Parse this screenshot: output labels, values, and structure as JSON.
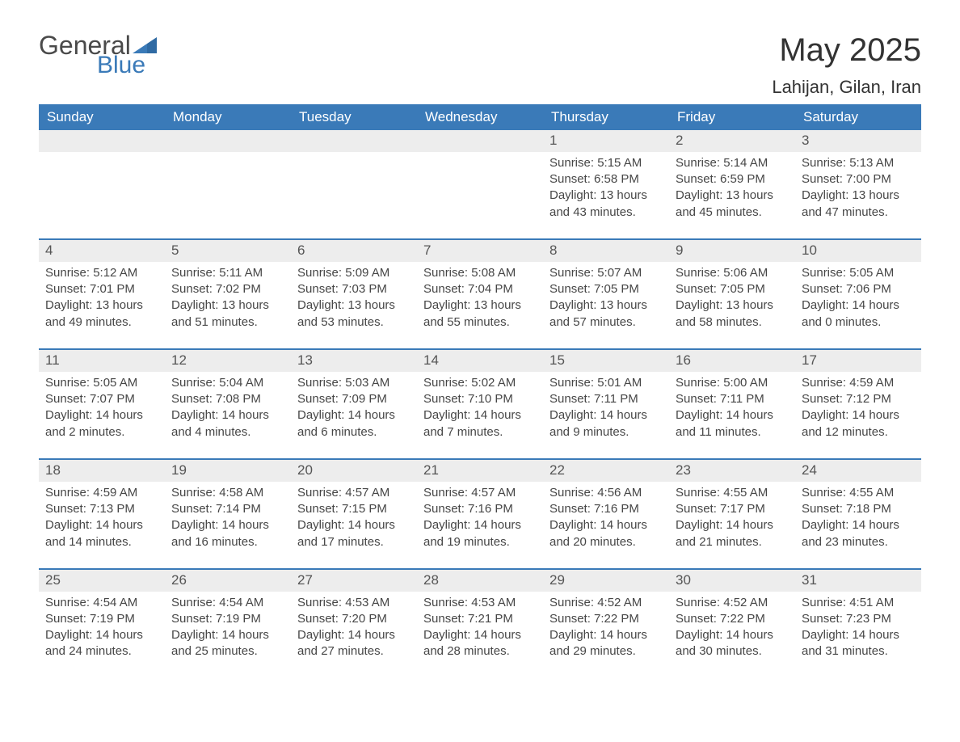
{
  "logo": {
    "text1": "General",
    "text2": "Blue",
    "flag_color": "#3a7ab8"
  },
  "title": "May 2025",
  "location": "Lahijan, Gilan, Iran",
  "colors": {
    "header_bg": "#3a7ab8",
    "header_text": "#ffffff",
    "daynum_bg": "#ededed",
    "row_border": "#3a7ab8",
    "body_text": "#464646",
    "page_bg": "#ffffff"
  },
  "typography": {
    "title_fontsize": 40,
    "location_fontsize": 22,
    "header_fontsize": 17,
    "cell_fontsize": 15
  },
  "weekdays": [
    "Sunday",
    "Monday",
    "Tuesday",
    "Wednesday",
    "Thursday",
    "Friday",
    "Saturday"
  ],
  "weeks": [
    [
      null,
      null,
      null,
      null,
      {
        "day": "1",
        "sunrise": "Sunrise: 5:15 AM",
        "sunset": "Sunset: 6:58 PM",
        "dl1": "Daylight: 13 hours",
        "dl2": "and 43 minutes."
      },
      {
        "day": "2",
        "sunrise": "Sunrise: 5:14 AM",
        "sunset": "Sunset: 6:59 PM",
        "dl1": "Daylight: 13 hours",
        "dl2": "and 45 minutes."
      },
      {
        "day": "3",
        "sunrise": "Sunrise: 5:13 AM",
        "sunset": "Sunset: 7:00 PM",
        "dl1": "Daylight: 13 hours",
        "dl2": "and 47 minutes."
      }
    ],
    [
      {
        "day": "4",
        "sunrise": "Sunrise: 5:12 AM",
        "sunset": "Sunset: 7:01 PM",
        "dl1": "Daylight: 13 hours",
        "dl2": "and 49 minutes."
      },
      {
        "day": "5",
        "sunrise": "Sunrise: 5:11 AM",
        "sunset": "Sunset: 7:02 PM",
        "dl1": "Daylight: 13 hours",
        "dl2": "and 51 minutes."
      },
      {
        "day": "6",
        "sunrise": "Sunrise: 5:09 AM",
        "sunset": "Sunset: 7:03 PM",
        "dl1": "Daylight: 13 hours",
        "dl2": "and 53 minutes."
      },
      {
        "day": "7",
        "sunrise": "Sunrise: 5:08 AM",
        "sunset": "Sunset: 7:04 PM",
        "dl1": "Daylight: 13 hours",
        "dl2": "and 55 minutes."
      },
      {
        "day": "8",
        "sunrise": "Sunrise: 5:07 AM",
        "sunset": "Sunset: 7:05 PM",
        "dl1": "Daylight: 13 hours",
        "dl2": "and 57 minutes."
      },
      {
        "day": "9",
        "sunrise": "Sunrise: 5:06 AM",
        "sunset": "Sunset: 7:05 PM",
        "dl1": "Daylight: 13 hours",
        "dl2": "and 58 minutes."
      },
      {
        "day": "10",
        "sunrise": "Sunrise: 5:05 AM",
        "sunset": "Sunset: 7:06 PM",
        "dl1": "Daylight: 14 hours",
        "dl2": "and 0 minutes."
      }
    ],
    [
      {
        "day": "11",
        "sunrise": "Sunrise: 5:05 AM",
        "sunset": "Sunset: 7:07 PM",
        "dl1": "Daylight: 14 hours",
        "dl2": "and 2 minutes."
      },
      {
        "day": "12",
        "sunrise": "Sunrise: 5:04 AM",
        "sunset": "Sunset: 7:08 PM",
        "dl1": "Daylight: 14 hours",
        "dl2": "and 4 minutes."
      },
      {
        "day": "13",
        "sunrise": "Sunrise: 5:03 AM",
        "sunset": "Sunset: 7:09 PM",
        "dl1": "Daylight: 14 hours",
        "dl2": "and 6 minutes."
      },
      {
        "day": "14",
        "sunrise": "Sunrise: 5:02 AM",
        "sunset": "Sunset: 7:10 PM",
        "dl1": "Daylight: 14 hours",
        "dl2": "and 7 minutes."
      },
      {
        "day": "15",
        "sunrise": "Sunrise: 5:01 AM",
        "sunset": "Sunset: 7:11 PM",
        "dl1": "Daylight: 14 hours",
        "dl2": "and 9 minutes."
      },
      {
        "day": "16",
        "sunrise": "Sunrise: 5:00 AM",
        "sunset": "Sunset: 7:11 PM",
        "dl1": "Daylight: 14 hours",
        "dl2": "and 11 minutes."
      },
      {
        "day": "17",
        "sunrise": "Sunrise: 4:59 AM",
        "sunset": "Sunset: 7:12 PM",
        "dl1": "Daylight: 14 hours",
        "dl2": "and 12 minutes."
      }
    ],
    [
      {
        "day": "18",
        "sunrise": "Sunrise: 4:59 AM",
        "sunset": "Sunset: 7:13 PM",
        "dl1": "Daylight: 14 hours",
        "dl2": "and 14 minutes."
      },
      {
        "day": "19",
        "sunrise": "Sunrise: 4:58 AM",
        "sunset": "Sunset: 7:14 PM",
        "dl1": "Daylight: 14 hours",
        "dl2": "and 16 minutes."
      },
      {
        "day": "20",
        "sunrise": "Sunrise: 4:57 AM",
        "sunset": "Sunset: 7:15 PM",
        "dl1": "Daylight: 14 hours",
        "dl2": "and 17 minutes."
      },
      {
        "day": "21",
        "sunrise": "Sunrise: 4:57 AM",
        "sunset": "Sunset: 7:16 PM",
        "dl1": "Daylight: 14 hours",
        "dl2": "and 19 minutes."
      },
      {
        "day": "22",
        "sunrise": "Sunrise: 4:56 AM",
        "sunset": "Sunset: 7:16 PM",
        "dl1": "Daylight: 14 hours",
        "dl2": "and 20 minutes."
      },
      {
        "day": "23",
        "sunrise": "Sunrise: 4:55 AM",
        "sunset": "Sunset: 7:17 PM",
        "dl1": "Daylight: 14 hours",
        "dl2": "and 21 minutes."
      },
      {
        "day": "24",
        "sunrise": "Sunrise: 4:55 AM",
        "sunset": "Sunset: 7:18 PM",
        "dl1": "Daylight: 14 hours",
        "dl2": "and 23 minutes."
      }
    ],
    [
      {
        "day": "25",
        "sunrise": "Sunrise: 4:54 AM",
        "sunset": "Sunset: 7:19 PM",
        "dl1": "Daylight: 14 hours",
        "dl2": "and 24 minutes."
      },
      {
        "day": "26",
        "sunrise": "Sunrise: 4:54 AM",
        "sunset": "Sunset: 7:19 PM",
        "dl1": "Daylight: 14 hours",
        "dl2": "and 25 minutes."
      },
      {
        "day": "27",
        "sunrise": "Sunrise: 4:53 AM",
        "sunset": "Sunset: 7:20 PM",
        "dl1": "Daylight: 14 hours",
        "dl2": "and 27 minutes."
      },
      {
        "day": "28",
        "sunrise": "Sunrise: 4:53 AM",
        "sunset": "Sunset: 7:21 PM",
        "dl1": "Daylight: 14 hours",
        "dl2": "and 28 minutes."
      },
      {
        "day": "29",
        "sunrise": "Sunrise: 4:52 AM",
        "sunset": "Sunset: 7:22 PM",
        "dl1": "Daylight: 14 hours",
        "dl2": "and 29 minutes."
      },
      {
        "day": "30",
        "sunrise": "Sunrise: 4:52 AM",
        "sunset": "Sunset: 7:22 PM",
        "dl1": "Daylight: 14 hours",
        "dl2": "and 30 minutes."
      },
      {
        "day": "31",
        "sunrise": "Sunrise: 4:51 AM",
        "sunset": "Sunset: 7:23 PM",
        "dl1": "Daylight: 14 hours",
        "dl2": "and 31 minutes."
      }
    ]
  ]
}
